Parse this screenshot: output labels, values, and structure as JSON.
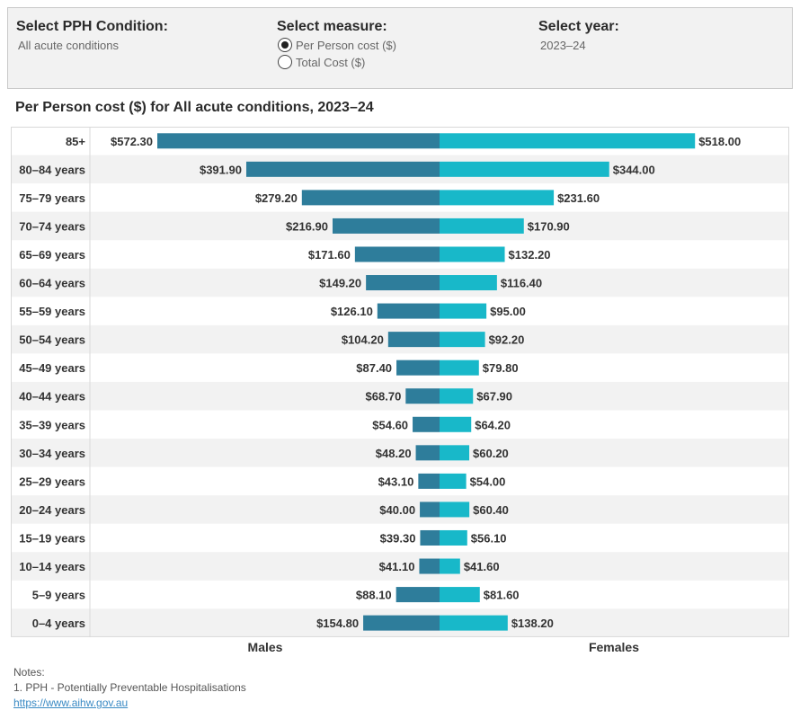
{
  "filters": {
    "condition": {
      "title": "Select PPH Condition:",
      "value": "All acute conditions"
    },
    "measure": {
      "title": "Select measure:",
      "options": [
        {
          "label": "Per Person cost ($)",
          "selected": true
        },
        {
          "label": "Total Cost ($)",
          "selected": false
        }
      ]
    },
    "year": {
      "title": "Select year:",
      "value": "2023–24"
    }
  },
  "chart_title": "Per Person cost ($) for All acute conditions, 2023–24",
  "chart_data": {
    "type": "bar",
    "orientation": "horizontal-diverging",
    "categories": [
      "85+",
      "80–84 years",
      "75–79 years",
      "70–74 years",
      "65–69 years",
      "60–64 years",
      "55–59 years",
      "50–54 years",
      "45–49 years",
      "40–44 years",
      "35–39 years",
      "30–34 years",
      "25–29 years",
      "20–24 years",
      "15–19 years",
      "10–14 years",
      "5–9 years",
      "0–4 years"
    ],
    "series": [
      {
        "name": "Males",
        "color": "#2e7d9b",
        "values": [
          572.3,
          391.9,
          279.2,
          216.9,
          171.6,
          149.2,
          126.1,
          104.2,
          87.4,
          68.7,
          54.6,
          48.2,
          43.1,
          40.0,
          39.3,
          41.1,
          88.1,
          154.8
        ]
      },
      {
        "name": "Females",
        "color": "#18b8c9",
        "values": [
          518.0,
          344.0,
          231.6,
          170.9,
          132.2,
          116.4,
          95.0,
          92.2,
          79.8,
          67.9,
          64.2,
          60.2,
          54.0,
          60.4,
          56.1,
          41.6,
          81.6,
          138.2
        ]
      }
    ],
    "value_labels": {
      "Males": [
        "$572.30",
        "$391.90",
        "$279.20",
        "$216.90",
        "$171.60",
        "$149.20",
        "$126.10",
        "$104.20",
        "$87.40",
        "$68.70",
        "$54.60",
        "$48.20",
        "$43.10",
        "$40.00",
        "$39.30",
        "$41.10",
        "$88.10",
        "$154.80"
      ],
      "Females": [
        "$518.00",
        "$344.00",
        "$231.60",
        "$170.90",
        "$132.20",
        "$116.40",
        "$95.00",
        "$92.20",
        "$79.80",
        "$67.90",
        "$64.20",
        "$60.20",
        "$54.00",
        "$60.40",
        "$56.10",
        "$41.60",
        "$81.60",
        "$138.20"
      ]
    },
    "xmax": 572.3,
    "row_banding": true
  },
  "notes": {
    "heading": "Notes:",
    "lines": [
      "1. PPH - Potentially Preventable Hospitalisations"
    ],
    "link": "https://www.aihw.gov.au"
  }
}
